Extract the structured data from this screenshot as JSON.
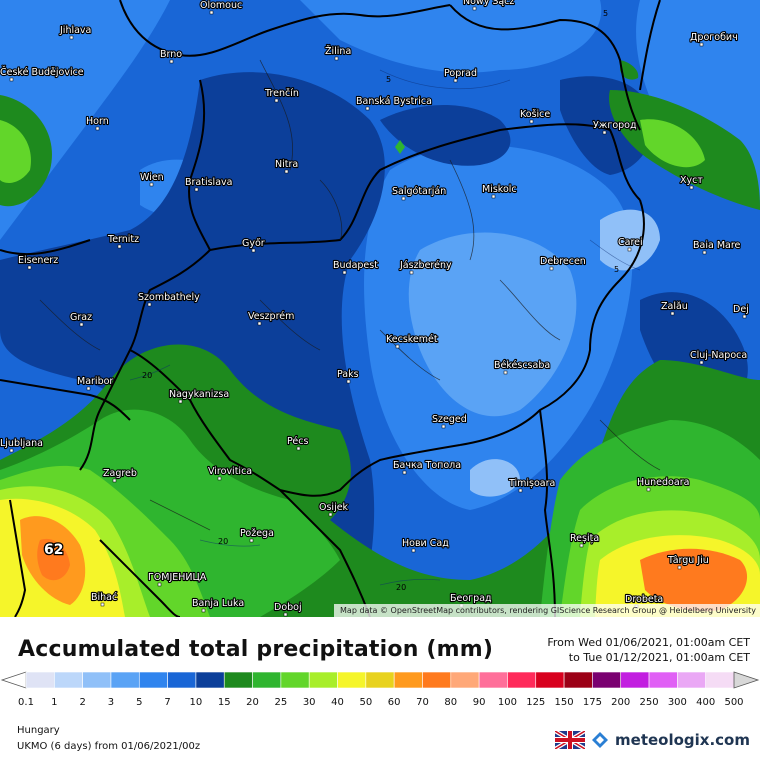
{
  "map": {
    "attribution": "Map data © OpenStreetMap contributors, rendering GIScience Research Group @ Heidelberg University",
    "max_label": "62",
    "cities": [
      {
        "name": "Olomouc"
      },
      {
        "name": "Nowy Sącz"
      },
      {
        "name": "Дрогобич"
      },
      {
        "name": "Jihlava"
      },
      {
        "name": "Brno"
      },
      {
        "name": "Žilina"
      },
      {
        "name": "Poprad"
      },
      {
        "name": "České Budějovice"
      },
      {
        "name": "Trenčín"
      },
      {
        "name": "Banská Bystrica"
      },
      {
        "name": "Košice"
      },
      {
        "name": "Ужгород"
      },
      {
        "name": "Horn"
      },
      {
        "name": "Nitra"
      },
      {
        "name": "Wien"
      },
      {
        "name": "Bratislava"
      },
      {
        "name": "Salgótarján"
      },
      {
        "name": "Miskolc"
      },
      {
        "name": "Хуст"
      },
      {
        "name": "Ternitz"
      },
      {
        "name": "Győr"
      },
      {
        "name": "Carei"
      },
      {
        "name": "Baia Mare"
      },
      {
        "name": "Eisenerz"
      },
      {
        "name": "Budapest"
      },
      {
        "name": "Jászberény"
      },
      {
        "name": "Debrecen"
      },
      {
        "name": "Szombathely"
      },
      {
        "name": "Zalău"
      },
      {
        "name": "Graz"
      },
      {
        "name": "Veszprém"
      },
      {
        "name": "Dej"
      },
      {
        "name": "Kecskemét"
      },
      {
        "name": "Cluj-Napoca"
      },
      {
        "name": "Maribor"
      },
      {
        "name": "Paks"
      },
      {
        "name": "Békéscsaba"
      },
      {
        "name": "Nagykanizsa"
      },
      {
        "name": "Szeged"
      },
      {
        "name": "Ljubljana"
      },
      {
        "name": "Pécs"
      },
      {
        "name": "Zagreb"
      },
      {
        "name": "Virovitica"
      },
      {
        "name": "Бачка Топола"
      },
      {
        "name": "Timișoara"
      },
      {
        "name": "Hunedoara"
      },
      {
        "name": "Osijek"
      },
      {
        "name": "Reșița"
      },
      {
        "name": "Požega"
      },
      {
        "name": "Нови Сад"
      },
      {
        "name": "Târgu Jiu"
      },
      {
        "name": "ГОМЈЕНИЦА"
      },
      {
        "name": "Bihać"
      },
      {
        "name": "Banja Luka"
      },
      {
        "name": "Doboj"
      },
      {
        "name": "Београд"
      },
      {
        "name": "Drobeta"
      }
    ],
    "isoline_labels": [
      "5",
      "5",
      "5",
      "20",
      "20",
      "20"
    ]
  },
  "header": {
    "title": "Accumulated total precipitation (mm)",
    "from": "From Wed 01/06/2021, 01:00am CET",
    "to": "to Tue 01/12/2021, 01:00am CET"
  },
  "legend": {
    "ticks": [
      "0.1",
      "1",
      "2",
      "3",
      "5",
      "7",
      "10",
      "15",
      "20",
      "25",
      "30",
      "40",
      "50",
      "60",
      "70",
      "80",
      "90",
      "100",
      "125",
      "150",
      "175",
      "200",
      "250",
      "300",
      "400",
      "500"
    ],
    "colors": [
      "#dfe3f5",
      "#bcd7fa",
      "#90c0f8",
      "#5aa3f5",
      "#2f84ee",
      "#1966d6",
      "#0c3f9a",
      "#1e8a1e",
      "#2fb52f",
      "#62d62a",
      "#a8ee2a",
      "#f5f52a",
      "#e8d21e",
      "#ff9a1e",
      "#ff7a1e",
      "#ffa878",
      "#ff6f9a",
      "#ff2a5a",
      "#d8001e",
      "#9c0016",
      "#7a0070",
      "#c21ee0",
      "#e060f5",
      "#eaa8f5",
      "#f5dcf5",
      "#d8d8d8"
    ]
  },
  "footer": {
    "region": "Hungary",
    "model": "UKMO (6 days) from 01/06/2021/00z",
    "brand": "meteologix.com"
  }
}
